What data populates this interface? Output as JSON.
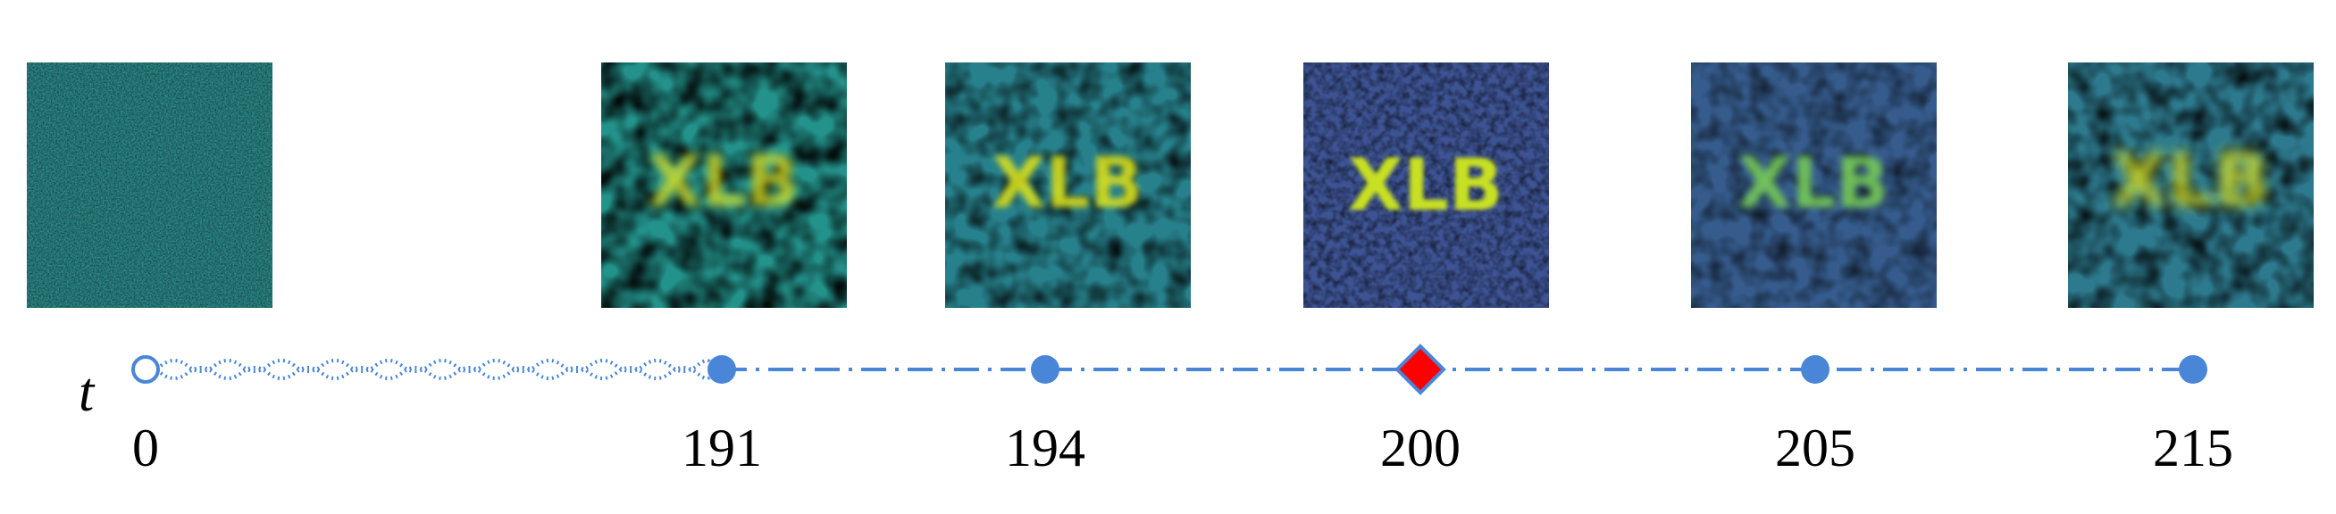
{
  "axis": {
    "symbol": "t"
  },
  "colors": {
    "line": "#4a86d8",
    "marker_fill": "#4a86d8",
    "start_marker_fill": "#ffffff",
    "highlight_fill": "#ff0000",
    "viridis_dark": "#3b4e8c",
    "viridis_mid": "#2a8f8c",
    "viridis_bright": "#dde31a"
  },
  "steps": [
    {
      "t": 0,
      "label": "0",
      "marker": "open-circle",
      "image": "noise",
      "overlay_text": ""
    },
    {
      "t": 191,
      "label": "191",
      "marker": "filled-circle",
      "image": "faint-text",
      "overlay_text": "XLB"
    },
    {
      "t": 194,
      "label": "194",
      "marker": "filled-circle",
      "image": "emerging-text",
      "overlay_text": "XLB"
    },
    {
      "t": 200,
      "label": "200",
      "marker": "red-diamond",
      "image": "clear-text",
      "overlay_text": "XLB"
    },
    {
      "t": 205,
      "label": "205",
      "marker": "filled-circle",
      "image": "fading-text",
      "overlay_text": "XLB"
    },
    {
      "t": 215,
      "label": "215",
      "marker": "filled-circle",
      "image": "blurred-text",
      "overlay_text": "XLB"
    }
  ]
}
